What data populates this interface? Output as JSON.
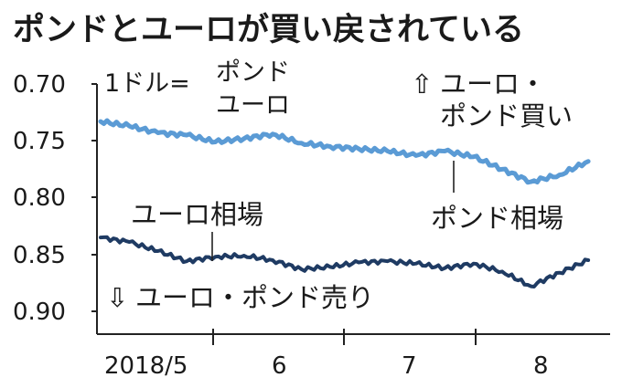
{
  "chart_data": {
    "type": "line",
    "title": "ポンドとユーロが買い戻されている",
    "unit_label": [
      "1ドル=",
      "ポンド",
      "ユーロ"
    ],
    "y_axis": {
      "reversed": true,
      "ylim": [
        0.7,
        0.9
      ],
      "ticks": [
        "0.70",
        "0.75",
        "0.80",
        "0.85",
        "0.90"
      ]
    },
    "x_axis": {
      "ticks": [
        "2018/5",
        "6",
        "7",
        "8"
      ]
    },
    "annotations": {
      "up": {
        "arrow": "⇧",
        "lines": [
          "ユーロ・",
          "ポンド買い"
        ]
      },
      "down": {
        "arrow": "⇩",
        "text": "ユーロ・ポンド売り"
      }
    },
    "series": [
      {
        "name": "ポンド相場",
        "color": "#5b9bd5",
        "x": [
          "2018-05-01",
          "2018-05-08",
          "2018-05-15",
          "2018-05-22",
          "2018-05-29",
          "2018-06-05",
          "2018-06-12",
          "2018-06-19",
          "2018-06-26",
          "2018-07-03",
          "2018-07-10",
          "2018-07-17",
          "2018-07-24",
          "2018-07-31",
          "2018-08-07",
          "2018-08-14",
          "2018-08-21",
          "2018-08-28"
        ],
        "values": [
          0.733,
          0.737,
          0.743,
          0.745,
          0.751,
          0.748,
          0.744,
          0.752,
          0.755,
          0.757,
          0.759,
          0.763,
          0.759,
          0.764,
          0.775,
          0.786,
          0.78,
          0.768
        ]
      },
      {
        "name": "ユーロ相場",
        "color": "#1f3b63",
        "x": [
          "2018-05-01",
          "2018-05-08",
          "2018-05-15",
          "2018-05-22",
          "2018-05-29",
          "2018-06-05",
          "2018-06-12",
          "2018-06-19",
          "2018-06-26",
          "2018-07-03",
          "2018-07-10",
          "2018-07-17",
          "2018-07-24",
          "2018-07-31",
          "2018-08-07",
          "2018-08-14",
          "2018-08-21",
          "2018-08-28"
        ],
        "values": [
          0.835,
          0.839,
          0.847,
          0.856,
          0.852,
          0.851,
          0.855,
          0.863,
          0.861,
          0.857,
          0.856,
          0.858,
          0.862,
          0.858,
          0.865,
          0.878,
          0.866,
          0.855
        ]
      }
    ],
    "series_labels": [
      "ポンド相場",
      "ユーロ相場"
    ]
  }
}
